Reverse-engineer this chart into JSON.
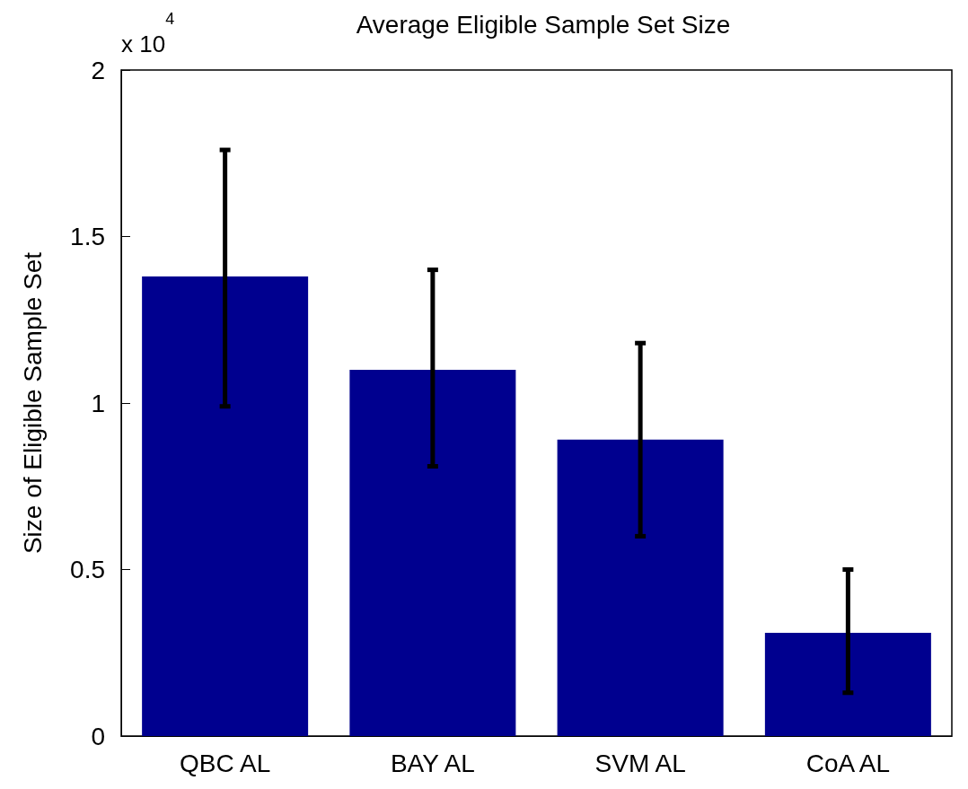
{
  "chart_data": {
    "type": "bar",
    "title": "Average Eligible Sample Set Size",
    "ylabel": "Size of Eligible Sample Set",
    "categories": [
      "QBC AL",
      "BAY AL",
      "SVM AL",
      "CoA AL"
    ],
    "values": [
      1.38,
      1.1,
      0.89,
      0.31
    ],
    "errors": [
      [
        0.99,
        1.76
      ],
      [
        0.81,
        1.4
      ],
      [
        0.6,
        1.18
      ],
      [
        0.13,
        0.5
      ]
    ],
    "color": "#00008f",
    "ylim": [
      0,
      2
    ],
    "yticks": [
      0,
      0.5,
      1,
      1.5,
      2
    ],
    "annotations": [
      "x 10$^{4}$"
    ],
    "grid": false
  }
}
